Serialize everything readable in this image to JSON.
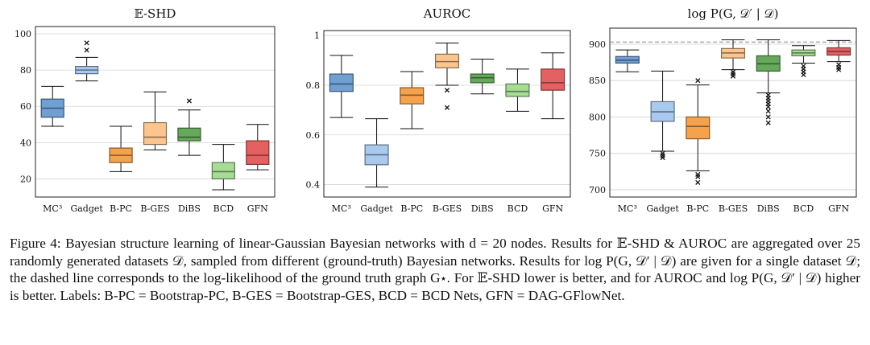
{
  "colors": {
    "MC3": "#6f9fd3",
    "Gadget": "#a9c9ee",
    "B-PC": "#f4a24c",
    "B-GES": "#fcc58e",
    "DiBS": "#65a95a",
    "BCD": "#a6dc94",
    "GFN": "#e56060"
  },
  "caption": "Figure 4: Bayesian structure learning of linear-Gaussian Bayesian networks with d = 20 nodes. Results for 𝔼-SHD & AUROC are aggregated over 25 randomly generated datasets 𝒟, sampled from different (ground-truth) Bayesian networks. Results for log P(G, 𝒟′ | 𝒟) are given for a single dataset 𝒟; the dashed line corresponds to the log-likelihood of the ground truth graph G⋆. For 𝔼-SHD lower is better, and for AUROC and log P(G, 𝒟′ | 𝒟) higher is better. Labels: B-PC = Bootstrap-PC, B-GES = Bootstrap-GES, BCD = BCD Nets, GFN = DAG-GFlowNet.",
  "chart_data": [
    {
      "type": "box",
      "title": "𝔼-SHD",
      "categories": [
        "MC³",
        "Gadget",
        "B-PC",
        "B-GES",
        "DiBS",
        "BCD",
        "GFN"
      ],
      "color_keys": [
        "MC3",
        "Gadget",
        "B-PC",
        "B-GES",
        "DiBS",
        "BCD",
        "GFN"
      ],
      "ylim": [
        10,
        104
      ],
      "yticks": [
        20,
        40,
        60,
        80,
        100
      ],
      "boxes": [
        {
          "whislo": 49,
          "q1": 54,
          "med": 59,
          "q3": 64,
          "whishi": 71,
          "fliers": []
        },
        {
          "whislo": 74,
          "q1": 78,
          "med": 80,
          "q3": 82,
          "whishi": 87,
          "fliers": [
            91,
            95
          ]
        },
        {
          "whislo": 24,
          "q1": 29,
          "med": 33,
          "q3": 37,
          "whishi": 49,
          "fliers": []
        },
        {
          "whislo": 36,
          "q1": 39,
          "med": 43,
          "q3": 51,
          "whishi": 68,
          "fliers": []
        },
        {
          "whislo": 33,
          "q1": 41,
          "med": 43,
          "q3": 48,
          "whishi": 58,
          "fliers": [
            63
          ]
        },
        {
          "whislo": 14,
          "q1": 20,
          "med": 24,
          "q3": 29,
          "whishi": 39,
          "fliers": []
        },
        {
          "whislo": 25,
          "q1": 28,
          "med": 33,
          "q3": 41,
          "whishi": 50,
          "fliers": []
        }
      ],
      "dashed_line": null
    },
    {
      "type": "box",
      "title": "AUROC",
      "categories": [
        "MC³",
        "Gadget",
        "B-PC",
        "B-GES",
        "DiBS",
        "BCD",
        "GFN"
      ],
      "color_keys": [
        "MC3",
        "Gadget",
        "B-PC",
        "B-GES",
        "DiBS",
        "BCD",
        "GFN"
      ],
      "ylim": [
        0.35,
        1.02
      ],
      "yticks": [
        0.4,
        0.6,
        0.8,
        1
      ],
      "boxes": [
        {
          "whislo": 0.67,
          "q1": 0.775,
          "med": 0.805,
          "q3": 0.845,
          "whishi": 0.92,
          "fliers": []
        },
        {
          "whislo": 0.39,
          "q1": 0.48,
          "med": 0.52,
          "q3": 0.56,
          "whishi": 0.665,
          "fliers": []
        },
        {
          "whislo": 0.625,
          "q1": 0.725,
          "med": 0.76,
          "q3": 0.79,
          "whishi": 0.855,
          "fliers": []
        },
        {
          "whislo": 0.8,
          "q1": 0.87,
          "med": 0.895,
          "q3": 0.925,
          "whishi": 0.97,
          "fliers": [
            0.78,
            0.71
          ]
        },
        {
          "whislo": 0.765,
          "q1": 0.81,
          "med": 0.83,
          "q3": 0.845,
          "whishi": 0.905,
          "fliers": []
        },
        {
          "whislo": 0.695,
          "q1": 0.755,
          "med": 0.775,
          "q3": 0.805,
          "whishi": 0.865,
          "fliers": []
        },
        {
          "whislo": 0.665,
          "q1": 0.78,
          "med": 0.81,
          "q3": 0.865,
          "whishi": 0.93,
          "fliers": []
        }
      ],
      "dashed_line": null
    },
    {
      "type": "box",
      "title": "log P(G, 𝒟′ | 𝒟)",
      "categories": [
        "MC³",
        "Gadget",
        "B-PC",
        "B-GES",
        "DiBS",
        "BCD",
        "GFN"
      ],
      "color_keys": [
        "MC3",
        "Gadget",
        "B-PC",
        "B-GES",
        "DiBS",
        "BCD",
        "GFN"
      ],
      "ylim": [
        690,
        922
      ],
      "yticks": [
        700,
        750,
        800,
        850,
        900
      ],
      "boxes": [
        {
          "whislo": 862,
          "q1": 874,
          "med": 878,
          "q3": 883,
          "whishi": 892,
          "fliers": []
        },
        {
          "whislo": 753,
          "q1": 794,
          "med": 807,
          "q3": 821,
          "whishi": 863,
          "fliers": [
            750,
            747,
            744
          ]
        },
        {
          "whislo": 726,
          "q1": 770,
          "med": 787,
          "q3": 800,
          "whishi": 844,
          "fliers": [
            850,
            721,
            718,
            710
          ]
        },
        {
          "whislo": 865,
          "q1": 881,
          "med": 888,
          "q3": 894,
          "whishi": 906,
          "fliers": [
            862,
            859,
            856
          ]
        },
        {
          "whislo": 833,
          "q1": 863,
          "med": 873,
          "q3": 884,
          "whishi": 906,
          "fliers": [
            830,
            826,
            822,
            818,
            814,
            808,
            800,
            792
          ]
        },
        {
          "whislo": 874,
          "q1": 884,
          "med": 888,
          "q3": 892,
          "whishi": 898,
          "fliers": [
            870,
            866,
            862,
            858
          ]
        },
        {
          "whislo": 876,
          "q1": 885,
          "med": 890,
          "q3": 895,
          "whishi": 905,
          "fliers": [
            872,
            868,
            865
          ]
        }
      ],
      "dashed_line": 903
    }
  ]
}
